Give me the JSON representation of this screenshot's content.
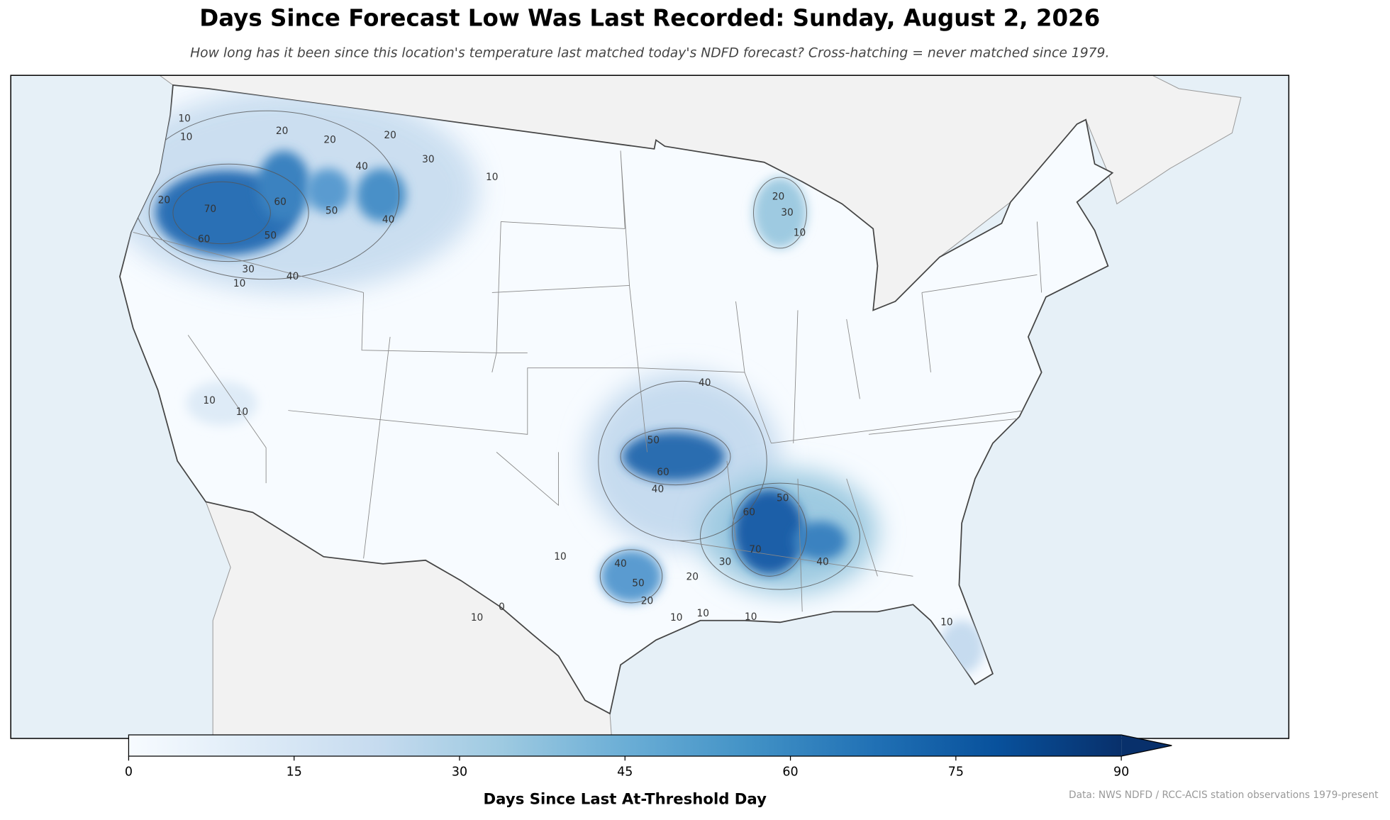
{
  "chart_data": {
    "type": "map",
    "title": "Days Since Forecast Low Was Last Recorded: Sunday, August 2, 2026",
    "subtitle": "How long has it been since this location's temperature last matched today's NDFD forecast? Cross-hatching = never matched since 1979.",
    "colorbar": {
      "label": "Days Since Last At-Threshold Day",
      "xlim": [
        0,
        90
      ],
      "xticks": [
        0,
        15,
        30,
        45,
        60,
        75,
        90
      ],
      "colors": [
        "#f7fbff",
        "#deebf7",
        "#c6dbef",
        "#9ecae1",
        "#6baed6",
        "#4292c6",
        "#2171b5",
        "#08519c",
        "#08306b"
      ]
    },
    "contour_labels": [
      10,
      10,
      20,
      20,
      20,
      30,
      10,
      20,
      70,
      60,
      60,
      40,
      50,
      40,
      50,
      30,
      10,
      40,
      20,
      30,
      10,
      10,
      10,
      40,
      50,
      60,
      40,
      50,
      60,
      70,
      40,
      30,
      40,
      50,
      10,
      20,
      20,
      10,
      0,
      10,
      10,
      10,
      10
    ],
    "source": "Data: NWS NDFD / RCC-ACIS station observations 1979-present"
  }
}
